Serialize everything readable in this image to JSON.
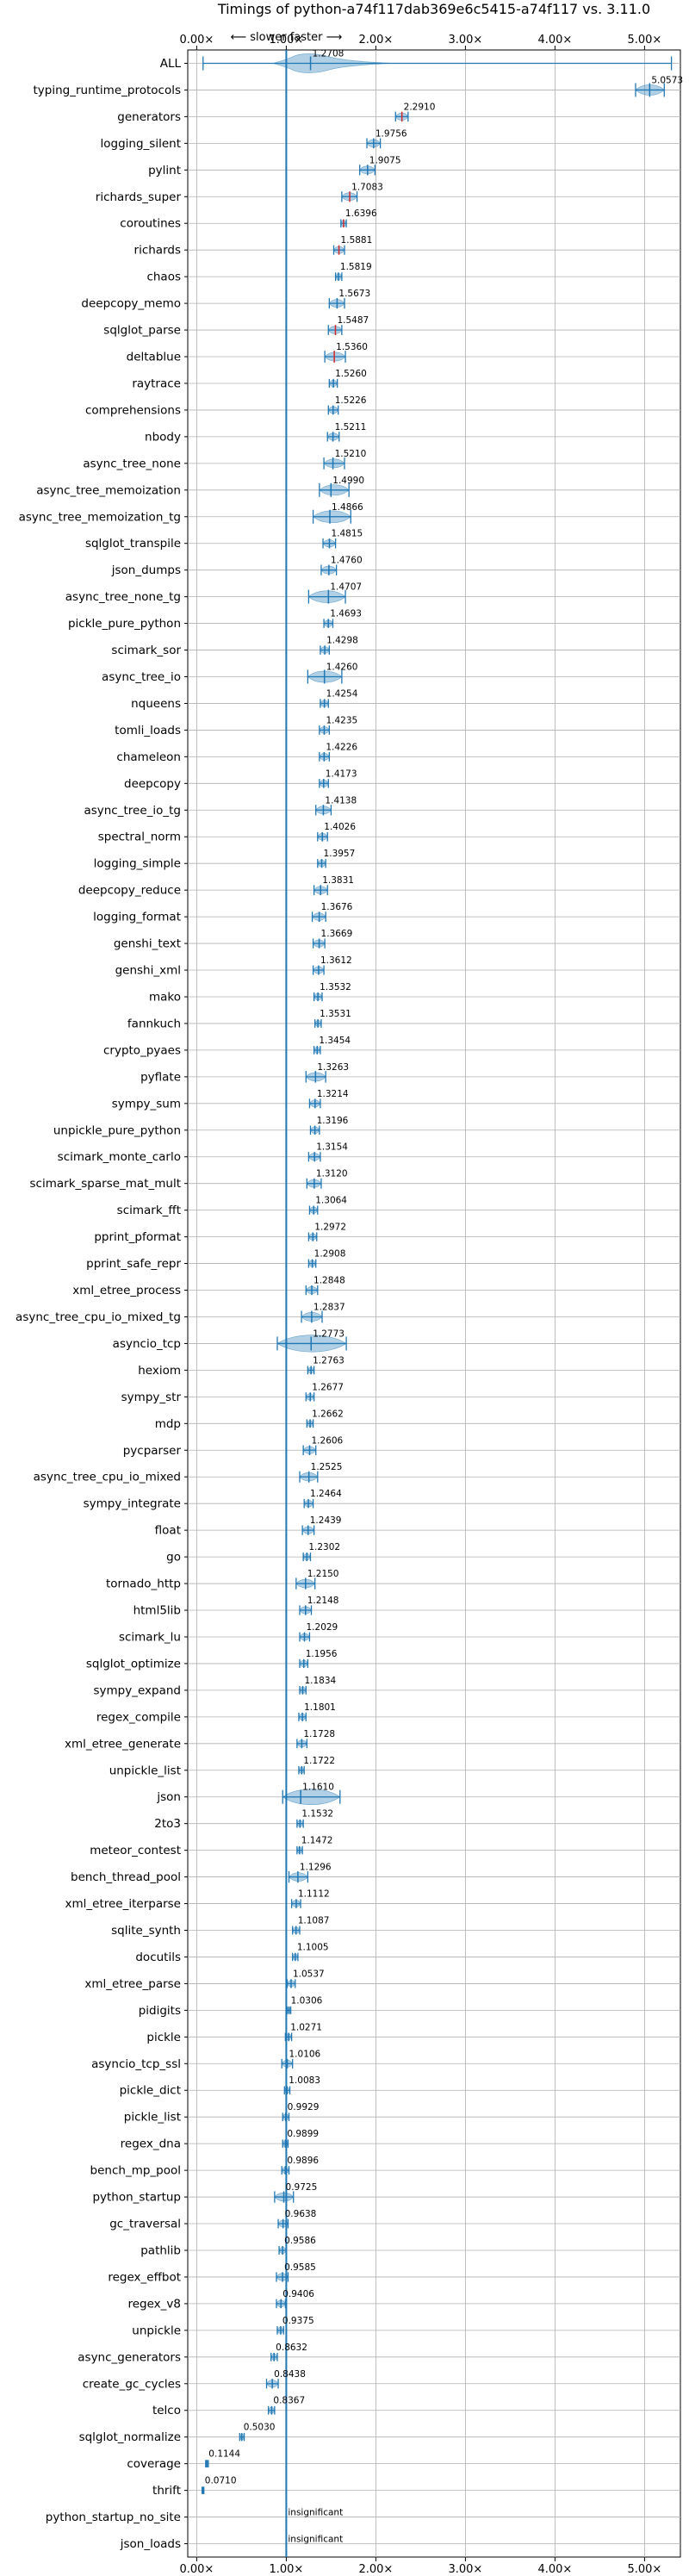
{
  "chart_data": {
    "type": "violin",
    "title": "Timings of python-a74f117dab369e6c5415-a74f117 vs. 3.11.0",
    "direction_label": "⟵ slower    faster ⟶",
    "xlim": [
      -0.1,
      5.4
    ],
    "reference_line": 1.0,
    "x_ticks": [
      {
        "value": 0,
        "label": "0.00×"
      },
      {
        "value": 1,
        "label": "1.00×"
      },
      {
        "value": 2,
        "label": "2.00×"
      },
      {
        "value": 3,
        "label": "3.00×"
      },
      {
        "value": 4,
        "label": "4.00×"
      },
      {
        "value": 5,
        "label": "5.00×"
      }
    ],
    "grid": true,
    "colors": {
      "violin": "#1f77b4",
      "highlight": "#d62728",
      "grid": "#b0b0b0"
    },
    "benchmarks": [
      {
        "name": "ALL",
        "mean": 1.2708,
        "label": "1.2708",
        "min": 0.071,
        "max": 5.3
      },
      {
        "name": "typing_runtime_protocols",
        "mean": 5.0573,
        "label": "5.0573",
        "min": 4.9,
        "max": 5.22
      },
      {
        "name": "generators",
        "mean": 2.291,
        "label": "2.2910",
        "min": 2.22,
        "max": 2.36
      },
      {
        "name": "logging_silent",
        "mean": 1.9756,
        "label": "1.9756",
        "min": 1.9,
        "max": 2.05
      },
      {
        "name": "pylint",
        "mean": 1.9075,
        "label": "1.9075",
        "min": 1.82,
        "max": 1.99
      },
      {
        "name": "richards_super",
        "mean": 1.7083,
        "label": "1.7083",
        "min": 1.62,
        "max": 1.79
      },
      {
        "name": "coroutines",
        "mean": 1.6396,
        "label": "1.6396",
        "min": 1.61,
        "max": 1.67
      },
      {
        "name": "richards",
        "mean": 1.5881,
        "label": "1.5881",
        "min": 1.53,
        "max": 1.65
      },
      {
        "name": "chaos",
        "mean": 1.5819,
        "label": "1.5819",
        "min": 1.55,
        "max": 1.62
      },
      {
        "name": "deepcopy_memo",
        "mean": 1.5673,
        "label": "1.5673",
        "min": 1.48,
        "max": 1.65
      },
      {
        "name": "sqlglot_parse",
        "mean": 1.5487,
        "label": "1.5487",
        "min": 1.47,
        "max": 1.62
      },
      {
        "name": "deltablue",
        "mean": 1.536,
        "label": "1.5360",
        "min": 1.43,
        "max": 1.66
      },
      {
        "name": "raytrace",
        "mean": 1.526,
        "label": "1.5260",
        "min": 1.48,
        "max": 1.57
      },
      {
        "name": "comprehensions",
        "mean": 1.5226,
        "label": "1.5226",
        "min": 1.47,
        "max": 1.58
      },
      {
        "name": "nbody",
        "mean": 1.5211,
        "label": "1.5211",
        "min": 1.46,
        "max": 1.59
      },
      {
        "name": "async_tree_none",
        "mean": 1.521,
        "label": "1.5210",
        "min": 1.42,
        "max": 1.65
      },
      {
        "name": "async_tree_memoization",
        "mean": 1.499,
        "label": "1.4990",
        "min": 1.37,
        "max": 1.7
      },
      {
        "name": "async_tree_memoization_tg",
        "mean": 1.4866,
        "label": "1.4866",
        "min": 1.3,
        "max": 1.72
      },
      {
        "name": "sqlglot_transpile",
        "mean": 1.4815,
        "label": "1.4815",
        "min": 1.41,
        "max": 1.55
      },
      {
        "name": "json_dumps",
        "mean": 1.476,
        "label": "1.4760",
        "min": 1.39,
        "max": 1.56
      },
      {
        "name": "async_tree_none_tg",
        "mean": 1.4707,
        "label": "1.4707",
        "min": 1.25,
        "max": 1.66
      },
      {
        "name": "pickle_pure_python",
        "mean": 1.4693,
        "label": "1.4693",
        "min": 1.42,
        "max": 1.52
      },
      {
        "name": "scimark_sor",
        "mean": 1.4298,
        "label": "1.4298",
        "min": 1.38,
        "max": 1.48
      },
      {
        "name": "async_tree_io",
        "mean": 1.426,
        "label": "1.4260",
        "min": 1.24,
        "max": 1.62
      },
      {
        "name": "nqueens",
        "mean": 1.4254,
        "label": "1.4254",
        "min": 1.38,
        "max": 1.47
      },
      {
        "name": "tomli_loads",
        "mean": 1.4235,
        "label": "1.4235",
        "min": 1.37,
        "max": 1.48
      },
      {
        "name": "chameleon",
        "mean": 1.4226,
        "label": "1.4226",
        "min": 1.37,
        "max": 1.48
      },
      {
        "name": "deepcopy",
        "mean": 1.4173,
        "label": "1.4173",
        "min": 1.37,
        "max": 1.47
      },
      {
        "name": "async_tree_io_tg",
        "mean": 1.4138,
        "label": "1.4138",
        "min": 1.33,
        "max": 1.5
      },
      {
        "name": "spectral_norm",
        "mean": 1.4026,
        "label": "1.4026",
        "min": 1.35,
        "max": 1.46
      },
      {
        "name": "logging_simple",
        "mean": 1.3957,
        "label": "1.3957",
        "min": 1.35,
        "max": 1.44
      },
      {
        "name": "deepcopy_reduce",
        "mean": 1.3831,
        "label": "1.3831",
        "min": 1.31,
        "max": 1.46
      },
      {
        "name": "logging_format",
        "mean": 1.3676,
        "label": "1.3676",
        "min": 1.29,
        "max": 1.44
      },
      {
        "name": "genshi_text",
        "mean": 1.3669,
        "label": "1.3669",
        "min": 1.3,
        "max": 1.43
      },
      {
        "name": "genshi_xml",
        "mean": 1.3612,
        "label": "1.3612",
        "min": 1.3,
        "max": 1.42
      },
      {
        "name": "mako",
        "mean": 1.3532,
        "label": "1.3532",
        "min": 1.31,
        "max": 1.4
      },
      {
        "name": "fannkuch",
        "mean": 1.3531,
        "label": "1.3531",
        "min": 1.32,
        "max": 1.39
      },
      {
        "name": "crypto_pyaes",
        "mean": 1.3454,
        "label": "1.3454",
        "min": 1.31,
        "max": 1.38
      },
      {
        "name": "pyflate",
        "mean": 1.3263,
        "label": "1.3263",
        "min": 1.22,
        "max": 1.44
      },
      {
        "name": "sympy_sum",
        "mean": 1.3214,
        "label": "1.3214",
        "min": 1.26,
        "max": 1.38
      },
      {
        "name": "unpickle_pure_python",
        "mean": 1.3196,
        "label": "1.3196",
        "min": 1.27,
        "max": 1.37
      },
      {
        "name": "scimark_monte_carlo",
        "mean": 1.3154,
        "label": "1.3154",
        "min": 1.25,
        "max": 1.38
      },
      {
        "name": "scimark_sparse_mat_mult",
        "mean": 1.312,
        "label": "1.3120",
        "min": 1.23,
        "max": 1.39
      },
      {
        "name": "scimark_fft",
        "mean": 1.3064,
        "label": "1.3064",
        "min": 1.26,
        "max": 1.35
      },
      {
        "name": "pprint_pformat",
        "mean": 1.2972,
        "label": "1.2972",
        "min": 1.25,
        "max": 1.34
      },
      {
        "name": "pprint_safe_repr",
        "mean": 1.2908,
        "label": "1.2908",
        "min": 1.25,
        "max": 1.33
      },
      {
        "name": "xml_etree_process",
        "mean": 1.2848,
        "label": "1.2848",
        "min": 1.22,
        "max": 1.35
      },
      {
        "name": "async_tree_cpu_io_mixed_tg",
        "mean": 1.2837,
        "label": "1.2837",
        "min": 1.17,
        "max": 1.4
      },
      {
        "name": "asyncio_tcp",
        "mean": 1.2773,
        "label": "1.2773",
        "min": 0.9,
        "max": 1.67
      },
      {
        "name": "hexiom",
        "mean": 1.2763,
        "label": "1.2763",
        "min": 1.24,
        "max": 1.31
      },
      {
        "name": "sympy_str",
        "mean": 1.2677,
        "label": "1.2677",
        "min": 1.22,
        "max": 1.31
      },
      {
        "name": "mdp",
        "mean": 1.2662,
        "label": "1.2662",
        "min": 1.23,
        "max": 1.3
      },
      {
        "name": "pycparser",
        "mean": 1.2606,
        "label": "1.2606",
        "min": 1.19,
        "max": 1.33
      },
      {
        "name": "async_tree_cpu_io_mixed",
        "mean": 1.2525,
        "label": "1.2525",
        "min": 1.15,
        "max": 1.35
      },
      {
        "name": "sympy_integrate",
        "mean": 1.2464,
        "label": "1.2464",
        "min": 1.2,
        "max": 1.3
      },
      {
        "name": "float",
        "mean": 1.2439,
        "label": "1.2439",
        "min": 1.18,
        "max": 1.31
      },
      {
        "name": "go",
        "mean": 1.2302,
        "label": "1.2302",
        "min": 1.19,
        "max": 1.27
      },
      {
        "name": "tornado_http",
        "mean": 1.215,
        "label": "1.2150",
        "min": 1.11,
        "max": 1.32
      },
      {
        "name": "html5lib",
        "mean": 1.2148,
        "label": "1.2148",
        "min": 1.15,
        "max": 1.28
      },
      {
        "name": "scimark_lu",
        "mean": 1.2029,
        "label": "1.2029",
        "min": 1.15,
        "max": 1.26
      },
      {
        "name": "sqlglot_optimize",
        "mean": 1.1956,
        "label": "1.1956",
        "min": 1.15,
        "max": 1.24
      },
      {
        "name": "sympy_expand",
        "mean": 1.1834,
        "label": "1.1834",
        "min": 1.15,
        "max": 1.22
      },
      {
        "name": "regex_compile",
        "mean": 1.1801,
        "label": "1.1801",
        "min": 1.14,
        "max": 1.22
      },
      {
        "name": "xml_etree_generate",
        "mean": 1.1728,
        "label": "1.1728",
        "min": 1.12,
        "max": 1.23
      },
      {
        "name": "unpickle_list",
        "mean": 1.1722,
        "label": "1.1722",
        "min": 1.14,
        "max": 1.2
      },
      {
        "name": "json",
        "mean": 1.161,
        "label": "1.1610",
        "min": 0.96,
        "max": 1.6
      },
      {
        "name": "2to3",
        "mean": 1.1532,
        "label": "1.1532",
        "min": 1.12,
        "max": 1.19
      },
      {
        "name": "meteor_contest",
        "mean": 1.1472,
        "label": "1.1472",
        "min": 1.12,
        "max": 1.18
      },
      {
        "name": "bench_thread_pool",
        "mean": 1.1296,
        "label": "1.1296",
        "min": 1.03,
        "max": 1.24
      },
      {
        "name": "xml_etree_iterparse",
        "mean": 1.1112,
        "label": "1.1112",
        "min": 1.06,
        "max": 1.16
      },
      {
        "name": "sqlite_synth",
        "mean": 1.1087,
        "label": "1.1087",
        "min": 1.07,
        "max": 1.15
      },
      {
        "name": "docutils",
        "mean": 1.1005,
        "label": "1.1005",
        "min": 1.07,
        "max": 1.13
      },
      {
        "name": "xml_etree_parse",
        "mean": 1.0537,
        "label": "1.0537",
        "min": 1.01,
        "max": 1.1
      },
      {
        "name": "pidigits",
        "mean": 1.0306,
        "label": "1.0306",
        "min": 1.01,
        "max": 1.05
      },
      {
        "name": "pickle",
        "mean": 1.0271,
        "label": "1.0271",
        "min": 0.99,
        "max": 1.06
      },
      {
        "name": "asyncio_tcp_ssl",
        "mean": 1.0106,
        "label": "1.0106",
        "min": 0.95,
        "max": 1.07
      },
      {
        "name": "pickle_dict",
        "mean": 1.0083,
        "label": "1.0083",
        "min": 0.98,
        "max": 1.04
      },
      {
        "name": "pickle_list",
        "mean": 0.9929,
        "label": "0.9929",
        "min": 0.96,
        "max": 1.03
      },
      {
        "name": "regex_dna",
        "mean": 0.9899,
        "label": "0.9899",
        "min": 0.96,
        "max": 1.02
      },
      {
        "name": "bench_mp_pool",
        "mean": 0.9896,
        "label": "0.9896",
        "min": 0.95,
        "max": 1.03
      },
      {
        "name": "python_startup",
        "mean": 0.9725,
        "label": "0.9725",
        "min": 0.87,
        "max": 1.08
      },
      {
        "name": "gc_traversal",
        "mean": 0.9638,
        "label": "0.9638",
        "min": 0.91,
        "max": 1.02
      },
      {
        "name": "pathlib",
        "mean": 0.9586,
        "label": "0.9586",
        "min": 0.92,
        "max": 1.0
      },
      {
        "name": "regex_effbot",
        "mean": 0.9585,
        "label": "0.9585",
        "min": 0.89,
        "max": 1.02
      },
      {
        "name": "regex_v8",
        "mean": 0.9406,
        "label": "0.9406",
        "min": 0.89,
        "max": 0.99
      },
      {
        "name": "unpickle",
        "mean": 0.9375,
        "label": "0.9375",
        "min": 0.9,
        "max": 0.97
      },
      {
        "name": "async_generators",
        "mean": 0.8632,
        "label": "0.8632",
        "min": 0.83,
        "max": 0.9
      },
      {
        "name": "create_gc_cycles",
        "mean": 0.8438,
        "label": "0.8438",
        "min": 0.78,
        "max": 0.91
      },
      {
        "name": "telco",
        "mean": 0.8367,
        "label": "0.8367",
        "min": 0.8,
        "max": 0.87
      },
      {
        "name": "sqlglot_normalize",
        "mean": 0.503,
        "label": "0.5030",
        "min": 0.48,
        "max": 0.53
      },
      {
        "name": "coverage",
        "mean": 0.1144,
        "label": "0.1144",
        "min": 0.1,
        "max": 0.13
      },
      {
        "name": "thrift",
        "mean": 0.071,
        "label": "0.0710",
        "min": 0.06,
        "max": 0.08
      },
      {
        "name": "python_startup_no_site",
        "mean": null,
        "label": "insignificant",
        "min": null,
        "max": null
      },
      {
        "name": "json_loads",
        "mean": null,
        "label": "insignificant",
        "min": null,
        "max": null
      }
    ],
    "highlighted": [
      "generators",
      "richards_super",
      "coroutines",
      "richards",
      "sqlglot_parse",
      "deltablue"
    ]
  }
}
